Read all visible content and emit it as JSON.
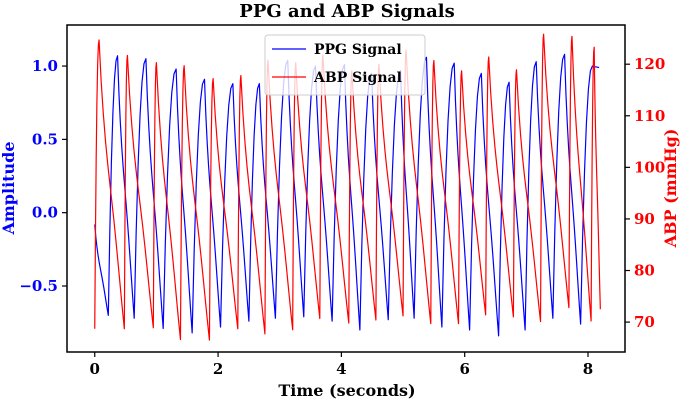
{
  "chart_data": {
    "type": "line",
    "title": "PPG and ABP Signals",
    "xlabel": "Time (seconds)",
    "ylabel_left": "Amplitude",
    "ylabel_right": "ABP (mmHg)",
    "xlim": [
      -0.45,
      8.6
    ],
    "ylim_left": [
      -0.95,
      1.28
    ],
    "ylim_right": [
      64.2,
      127.6
    ],
    "x_ticks": [
      0,
      2,
      4,
      6,
      8
    ],
    "y_ticks_left": [
      -0.5,
      0.0,
      0.5,
      1.0
    ],
    "y_ticks_left_labels": [
      "−0.5",
      "0.0",
      "0.5",
      "1.0"
    ],
    "y_ticks_right": [
      70,
      80,
      90,
      100,
      110,
      120
    ],
    "legend_position": "top-center",
    "grid": false,
    "colors": {
      "ppg": "#0000ff",
      "abp": "#ff0000",
      "axes": "#000000"
    },
    "series": [
      {
        "name": "PPG Signal",
        "axis": "left",
        "color": "#0000ff",
        "start_x": 0.0,
        "start_y": -0.08,
        "end_x": 8.18,
        "end_y": 0.99,
        "peaks_x": [
          0.37,
          0.83,
          1.32,
          1.78,
          2.24,
          2.67,
          3.13,
          3.58,
          4.05,
          4.49,
          4.96,
          5.38,
          5.83,
          6.27,
          6.72,
          7.16,
          7.62,
          8.07
        ],
        "peaks_y": [
          1.07,
          1.05,
          0.98,
          0.91,
          0.88,
          0.88,
          1.04,
          1.0,
          1.01,
          0.95,
          0.97,
          1.06,
          1.02,
          0.95,
          0.89,
          1.03,
          1.08,
          1.0
        ],
        "troughs_x": [
          0.22,
          0.64,
          1.11,
          1.58,
          2.04,
          2.5,
          2.93,
          3.39,
          3.85,
          4.3,
          4.76,
          5.18,
          5.63,
          6.08,
          6.55,
          6.98,
          7.43,
          7.88
        ],
        "troughs_y": [
          -0.7,
          -0.72,
          -0.79,
          -0.82,
          -0.78,
          -0.74,
          -0.72,
          -0.71,
          -0.74,
          -0.8,
          -0.73,
          -0.72,
          -0.78,
          -0.8,
          -0.84,
          -0.8,
          -0.72,
          -0.76
        ]
      },
      {
        "name": "ABP Signal",
        "axis": "right",
        "color": "#ff0000",
        "start_x": 0.0,
        "start_y": 68.7,
        "end_x": 8.2,
        "end_y": 72.5,
        "peaks_x": [
          0.07,
          0.53,
          1.0,
          1.45,
          1.92,
          2.37,
          2.81,
          3.26,
          3.7,
          4.17,
          4.61,
          5.05,
          5.5,
          5.95,
          6.39,
          6.84,
          7.28,
          7.74,
          8.1
        ],
        "peaks_y": [
          124.7,
          121.7,
          120.3,
          119.7,
          117.2,
          117.8,
          120.8,
          120.3,
          121.8,
          118.7,
          120.0,
          122.7,
          120.7,
          118.7,
          121.4,
          118.9,
          125.8,
          125.4,
          123.3
        ],
        "troughs_x": [
          0.48,
          0.95,
          1.39,
          1.86,
          2.32,
          2.76,
          3.21,
          3.65,
          4.12,
          4.56,
          5.0,
          5.45,
          5.9,
          6.34,
          6.79,
          7.23,
          7.69,
          8.05
        ],
        "troughs_y": [
          68.7,
          68.9,
          66.6,
          66.5,
          68.7,
          67.7,
          68.5,
          70.7,
          69.8,
          70.4,
          71.2,
          69.7,
          69.7,
          71.4,
          71.0,
          70.1,
          72.8,
          70.2
        ]
      }
    ]
  }
}
